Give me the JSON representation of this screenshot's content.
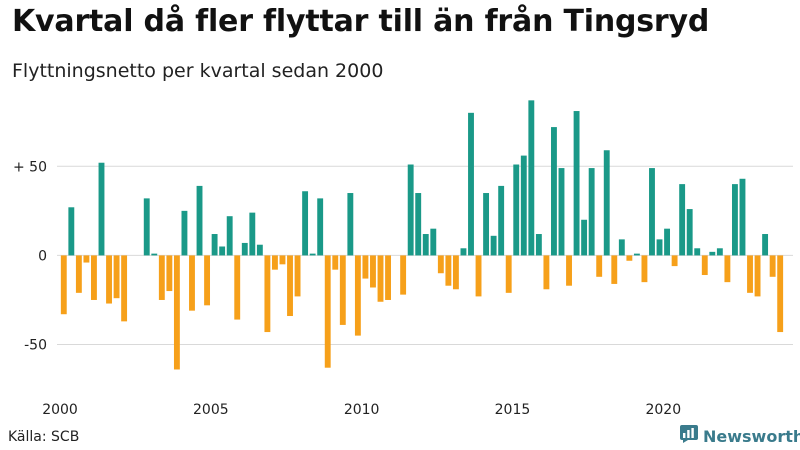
{
  "header": {
    "title": "Kvartal då fler flyttar till än från Tingsryd",
    "subtitle": "Flyttningsnetto per kvartal sedan 2000"
  },
  "footer": {
    "source": "Källa: SCB",
    "brand": "Newsworthy"
  },
  "colors": {
    "positive": "#1a9988",
    "negative": "#f6a01a",
    "grid": "#d9d9d9",
    "brand": "#3a7b8c"
  },
  "icons": {
    "brand_logo": "newsworthy-logo-icon"
  },
  "chart_data": {
    "type": "bar",
    "title": "Kvartal då fler flyttar till än från Tingsryd",
    "subtitle": "Flyttningsnetto per kvartal sedan 2000",
    "xlabel": "",
    "ylabel": "",
    "x_start": 2000.0,
    "x_step": 0.25,
    "xlim": [
      1999.9,
      2024.3
    ],
    "ylim": [
      -80,
      90
    ],
    "x_ticks": [
      2000,
      2005,
      2010,
      2015,
      2020
    ],
    "x_tick_labels": [
      "2000",
      "2005",
      "2010",
      "2015",
      "2020"
    ],
    "y_ticks": [
      50,
      0,
      -50
    ],
    "y_tick_labels": [
      "+ 50",
      "0",
      "-50"
    ],
    "grid": true,
    "legend": "none",
    "values": [
      -33,
      27,
      -21,
      -4,
      -25,
      52,
      -27,
      -24,
      -37,
      0,
      0,
      32,
      1,
      -25,
      -20,
      -64,
      25,
      -31,
      39,
      -28,
      12,
      5,
      22,
      -36,
      7,
      24,
      6,
      -43,
      -8,
      -5,
      -34,
      -23,
      36,
      1,
      32,
      -63,
      -8,
      -39,
      35,
      -45,
      -13,
      -18,
      -26,
      -25,
      0,
      -22,
      51,
      35,
      12,
      15,
      -10,
      -17,
      -19,
      4,
      80,
      -23,
      35,
      11,
      39,
      -21,
      51,
      56,
      87,
      12,
      -19,
      72,
      49,
      -17,
      81,
      20,
      49,
      -12,
      59,
      -16,
      9,
      -3,
      1,
      -15,
      49,
      9,
      15,
      -6,
      40,
      26,
      4,
      -11,
      2,
      4,
      -15,
      40,
      43,
      -21,
      -23,
      12,
      -12,
      -43
    ]
  }
}
